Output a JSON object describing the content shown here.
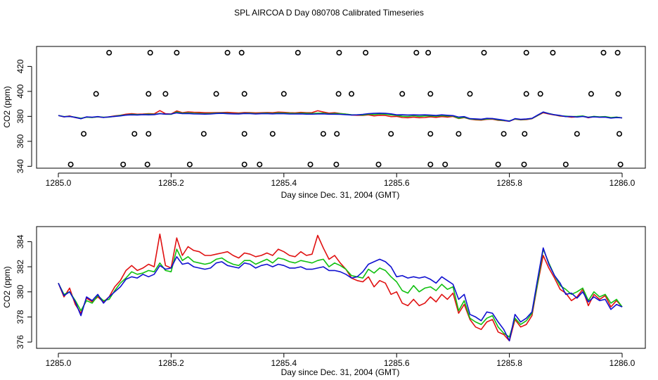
{
  "page": {
    "title": "SPL AIRCOA D  Day 080708  Calibrated Timeseries"
  },
  "chart_data": [
    {
      "type": "scatter",
      "name": "top-panel",
      "xlabel": "Day since Dec. 31, 2004 (GMT)",
      "ylabel": "CO2 (ppm)",
      "xlim": [
        1285.0,
        1286.0
      ],
      "ylim": [
        338.5,
        436
      ],
      "xticks": [
        1285.0,
        1285.2,
        1285.4,
        1285.6,
        1285.8,
        1286.0
      ],
      "xtick_labels": [
        "1285.0",
        "1285.2",
        "1285.4",
        "1285.6",
        "1285.8",
        "1286.0"
      ],
      "yticks": [
        340,
        360,
        380,
        400,
        420
      ],
      "ytick_labels": [
        "340",
        "360",
        "380",
        "400",
        "420"
      ],
      "series": [
        {
          "name": "red",
          "color": "#e01010",
          "ref": "red"
        },
        {
          "name": "green",
          "color": "#10c010",
          "ref": "green"
        },
        {
          "name": "blue",
          "color": "#1010d0",
          "ref": "blue"
        }
      ],
      "flag_points": {
        "ref340": [
          [
            1285.022,
            1285.115,
            1285.158,
            1285.233,
            1285.33,
            1285.357,
            1285.447,
            1285.493,
            1285.568,
            1285.66,
            1285.686,
            1285.78,
            1285.826,
            1285.9,
            1285.997
          ]
        ],
        "ref366": [
          [
            1285.045,
            1285.135,
            1285.16,
            1285.258,
            1285.33,
            1285.38,
            1285.47,
            1285.494,
            1285.59,
            1285.66,
            1285.71,
            1285.79,
            1285.827,
            1285.92,
            1285.995
          ]
        ],
        "ref398": [
          [
            1285.067,
            1285.16,
            1285.19,
            1285.28,
            1285.33,
            1285.4,
            1285.497,
            1285.52,
            1285.61,
            1285.66,
            1285.73,
            1285.83,
            1285.855,
            1285.945,
            1285.993
          ]
        ],
        "ref431": [
          [
            1285.09,
            1285.163,
            1285.21,
            1285.3,
            1285.325,
            1285.425,
            1285.498,
            1285.545,
            1285.635,
            1285.656,
            1285.755,
            1285.83,
            1285.877,
            1285.967,
            1285.992
          ]
        ]
      }
    },
    {
      "type": "line",
      "name": "bottom-panel",
      "xlabel": "Day since Dec. 31, 2004 (GMT)",
      "ylabel": "CO2 (ppm)",
      "xlim": [
        1285.0,
        1286.0
      ],
      "ylim": [
        375.5,
        385.2
      ],
      "xticks": [
        1285.0,
        1285.2,
        1285.4,
        1285.6,
        1285.8,
        1286.0
      ],
      "xtick_labels": [
        "1285.0",
        "1285.2",
        "1285.4",
        "1285.6",
        "1285.8",
        "1286.0"
      ],
      "yticks": [
        376,
        378,
        380,
        382,
        384
      ],
      "ytick_labels": [
        "376",
        "378",
        "380",
        "382",
        "384"
      ],
      "x": [
        1285.0,
        1285.01,
        1285.02,
        1285.03,
        1285.04,
        1285.05,
        1285.06,
        1285.07,
        1285.08,
        1285.09,
        1285.1,
        1285.11,
        1285.12,
        1285.13,
        1285.14,
        1285.15,
        1285.16,
        1285.17,
        1285.18,
        1285.19,
        1285.2,
        1285.21,
        1285.22,
        1285.23,
        1285.24,
        1285.25,
        1285.26,
        1285.27,
        1285.28,
        1285.29,
        1285.3,
        1285.31,
        1285.32,
        1285.33,
        1285.34,
        1285.35,
        1285.36,
        1285.37,
        1285.38,
        1285.39,
        1285.4,
        1285.41,
        1285.42,
        1285.43,
        1285.44,
        1285.45,
        1285.46,
        1285.47,
        1285.48,
        1285.49,
        1285.5,
        1285.51,
        1285.52,
        1285.53,
        1285.54,
        1285.55,
        1285.56,
        1285.57,
        1285.58,
        1285.59,
        1285.6,
        1285.61,
        1285.62,
        1285.63,
        1285.64,
        1285.65,
        1285.66,
        1285.67,
        1285.68,
        1285.69,
        1285.7,
        1285.71,
        1285.72,
        1285.73,
        1285.74,
        1285.75,
        1285.76,
        1285.77,
        1285.78,
        1285.79,
        1285.8,
        1285.81,
        1285.82,
        1285.83,
        1285.84,
        1285.85,
        1285.86,
        1285.87,
        1285.88,
        1285.89,
        1285.9,
        1285.91,
        1285.92,
        1285.93,
        1285.94,
        1285.95,
        1285.96,
        1285.97,
        1285.98,
        1285.99,
        1286.0
      ],
      "series": [
        {
          "name": "red",
          "color": "#e01010",
          "values": [
            380.7,
            379.6,
            380.3,
            379.0,
            378.3,
            379.5,
            379.2,
            379.6,
            379.2,
            379.6,
            380.4,
            380.9,
            381.7,
            382.1,
            381.7,
            381.9,
            382.2,
            382.0,
            384.6,
            382.1,
            381.9,
            384.3,
            382.9,
            383.6,
            383.3,
            383.2,
            382.9,
            382.9,
            383.0,
            383.1,
            383.2,
            382.9,
            382.7,
            383.1,
            383.0,
            382.8,
            382.9,
            383.1,
            382.9,
            383.4,
            383.2,
            382.9,
            382.8,
            383.2,
            382.9,
            383.0,
            384.5,
            383.5,
            382.6,
            382.9,
            382.3,
            381.8,
            381.1,
            380.9,
            380.8,
            381.2,
            380.4,
            380.9,
            380.7,
            379.8,
            380.0,
            379.1,
            378.9,
            379.4,
            378.9,
            379.1,
            379.6,
            379.2,
            379.8,
            379.4,
            379.9,
            378.3,
            379.0,
            377.8,
            377.2,
            377.0,
            377.6,
            377.8,
            376.8,
            376.6,
            376.1,
            377.8,
            377.2,
            377.4,
            378.1,
            380.6,
            382.9,
            381.9,
            381.1,
            380.2,
            379.9,
            379.3,
            379.6,
            380.2,
            378.9,
            379.8,
            379.4,
            379.7,
            378.8,
            379.3,
            378.8
          ]
        },
        {
          "name": "green",
          "color": "#10c010",
          "values": [
            380.7,
            379.8,
            380.0,
            379.3,
            378.5,
            379.3,
            379.1,
            379.7,
            379.3,
            379.4,
            380.1,
            380.7,
            381.1,
            381.6,
            381.4,
            381.5,
            381.7,
            381.6,
            382.3,
            381.7,
            381.6,
            383.4,
            382.5,
            382.8,
            382.4,
            382.3,
            382.2,
            382.3,
            382.6,
            382.7,
            382.4,
            382.2,
            382.1,
            382.5,
            382.5,
            382.2,
            382.4,
            382.6,
            382.3,
            382.7,
            382.6,
            382.4,
            382.3,
            382.5,
            382.4,
            382.3,
            382.5,
            382.6,
            382.0,
            382.3,
            382.1,
            381.8,
            381.3,
            381.2,
            381.1,
            381.8,
            381.5,
            381.9,
            381.7,
            381.2,
            380.8,
            380.1,
            379.9,
            380.5,
            380.0,
            380.3,
            380.4,
            380.1,
            380.6,
            380.2,
            380.4,
            378.5,
            379.3,
            377.9,
            377.6,
            377.4,
            377.9,
            378.1,
            377.2,
            376.7,
            376.4,
            377.9,
            377.4,
            377.7,
            378.3,
            380.7,
            383.4,
            382.3,
            381.3,
            380.5,
            380.2,
            379.8,
            380.0,
            380.3,
            379.3,
            380.0,
            379.6,
            379.8,
            379.1,
            379.4,
            378.8
          ]
        },
        {
          "name": "blue",
          "color": "#1010d0",
          "values": [
            380.7,
            379.7,
            380.0,
            379.2,
            378.1,
            379.6,
            379.3,
            379.8,
            379.1,
            379.6,
            380.0,
            380.4,
            381.0,
            381.2,
            381.1,
            381.4,
            381.2,
            381.4,
            382.1,
            381.8,
            381.9,
            382.8,
            382.2,
            382.3,
            382.0,
            381.9,
            381.8,
            381.9,
            382.3,
            382.4,
            382.1,
            382.0,
            381.9,
            382.3,
            382.2,
            381.9,
            382.1,
            382.2,
            382.0,
            382.2,
            382.1,
            381.9,
            381.9,
            382.0,
            381.8,
            381.8,
            381.9,
            382.0,
            381.7,
            381.7,
            381.6,
            381.4,
            381.1,
            381.2,
            381.6,
            382.2,
            382.4,
            382.6,
            382.4,
            382.0,
            381.2,
            381.3,
            381.1,
            381.2,
            381.1,
            381.2,
            381.0,
            380.7,
            381.2,
            380.9,
            380.6,
            379.4,
            379.8,
            378.2,
            378.0,
            377.7,
            378.4,
            378.3,
            377.6,
            377.0,
            376.1,
            378.2,
            377.6,
            377.9,
            378.4,
            381.0,
            383.5,
            382.2,
            381.3,
            380.7,
            379.8,
            379.9,
            379.5,
            380.0,
            379.2,
            379.6,
            379.3,
            379.4,
            378.6,
            379.0,
            378.8
          ]
        }
      ]
    }
  ]
}
